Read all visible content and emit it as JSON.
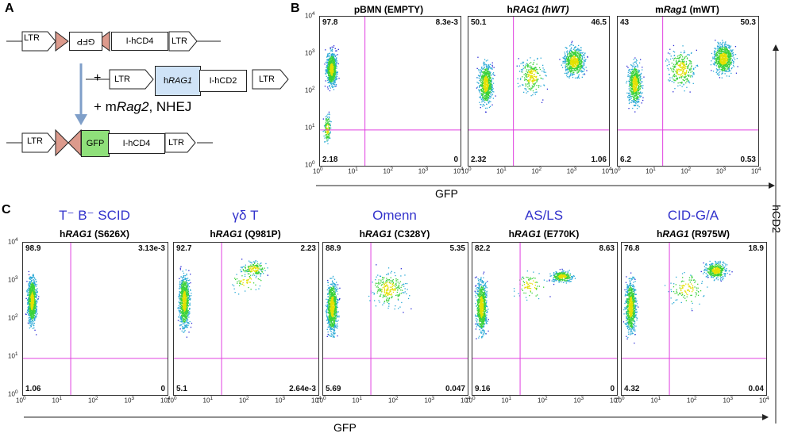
{
  "panels": {
    "a": "A",
    "b": "B",
    "c": "C"
  },
  "diagram": {
    "ltr": "LTR",
    "gfp_inverted": "GFP",
    "gfp": "GFP",
    "ihcd4": "I-hCD4",
    "ihcd2": "I-hCD2",
    "hrag1_prefix": "h",
    "hrag1_gene": "RAG1",
    "plus1": "+",
    "plus2_prefix": "+ m",
    "mrag2_gene": "Rag2",
    "nhej": ", NHEJ",
    "colors": {
      "triangle": "#dc9a8c",
      "hrag1_box": "#cfe3f7",
      "gfp_box": "#8fe07a",
      "arrow": "#7f9fc9"
    }
  },
  "axes": {
    "gfp_label": "GFP",
    "hcd2_label": "hCD2",
    "x_ticks": [
      "10^0",
      "10^1",
      "10^2",
      "10^3",
      "10^4"
    ],
    "y_ticks": [
      "10^0",
      "10^1",
      "10^2",
      "10^3",
      "10^4"
    ]
  },
  "top_row": [
    {
      "title_prefix": "pBMN (EMPTY)",
      "title_gene": "",
      "title_suffix": "",
      "ul": "97.8",
      "ur": "8.3e-3",
      "ll": "2.18",
      "lr": "0"
    },
    {
      "title_prefix": "h",
      "title_gene": "RAG1 (hWT)",
      "title_suffix": "",
      "ul": "50.1",
      "ur": "46.5",
      "ll": "2.32",
      "lr": "1.06"
    },
    {
      "title_prefix": "m",
      "title_gene": "Rag1",
      "title_suffix": " (mWT)",
      "ul": "43",
      "ur": "50.3",
      "ll": "6.2",
      "lr": "0.53"
    }
  ],
  "bottom_row": [
    {
      "category": "T⁻ B⁻ SCID",
      "gene_prefix": "h",
      "gene": "RAG1",
      "mutation": " (S626X)",
      "ul": "98.9",
      "ur": "3.13e-3",
      "ll": "1.06",
      "lr": "0"
    },
    {
      "category": "γδ T",
      "gene_prefix": "h",
      "gene": "RAG1",
      "mutation": " (Q981P)",
      "ul": "92.7",
      "ur": "2.23",
      "ll": "5.1",
      "lr": "2.64e-3"
    },
    {
      "category": "Omenn",
      "gene_prefix": "h",
      "gene": "RAG1",
      "mutation": " (C328Y)",
      "ul": "88.9",
      "ur": "5.35",
      "ll": "5.69",
      "lr": "0.047"
    },
    {
      "category": "AS/LS",
      "gene_prefix": "h",
      "gene": "RAG1",
      "mutation": " (E770K)",
      "ul": "82.2",
      "ur": "8.63",
      "ll": "9.16",
      "lr": "0"
    },
    {
      "category": "CID-G/A",
      "gene_prefix": "h",
      "gene": "RAG1",
      "mutation": " (R975W)",
      "ul": "76.8",
      "ur": "18.9",
      "ll": "4.32",
      "lr": "0.04"
    }
  ]
}
